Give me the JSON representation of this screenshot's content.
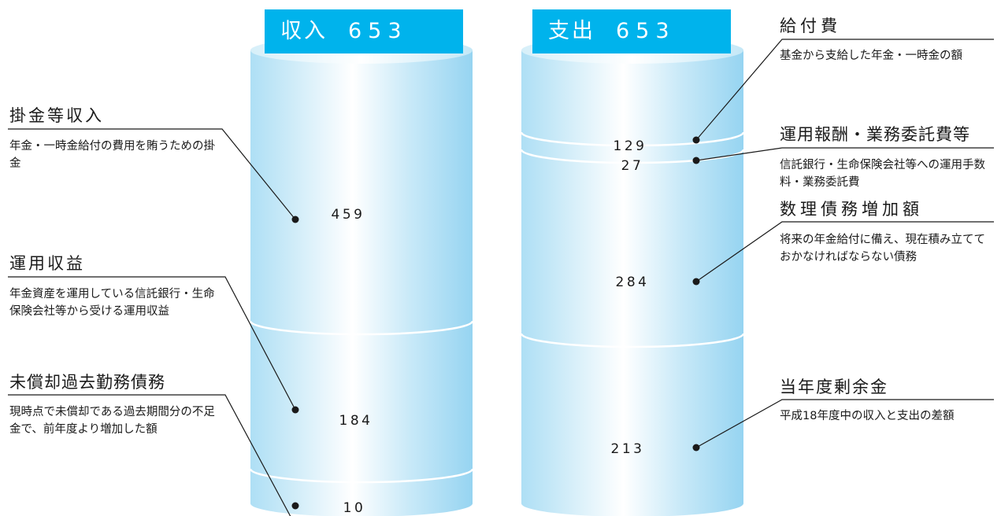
{
  "colors": {
    "accent": "#00b3ec",
    "cylinder_edge": "#8fd2f0",
    "cylinder_light": "#ffffff",
    "line": "#1a1a1a"
  },
  "income": {
    "title": "収入",
    "total": "653",
    "segments": [
      {
        "value": "459",
        "name": "掛金等収入",
        "description": "年金・一時金給付の費用を賄うための掛金"
      },
      {
        "value": "184",
        "name": "運用収益",
        "description": "年金資産を運用している信託銀行・生命保険会社等から受ける運用収益"
      },
      {
        "value": "10",
        "name": "未償却過去勤務債務",
        "description": "現時点で未償却である過去期間分の不足金で、前年度より増加した額"
      }
    ]
  },
  "expenses": {
    "title": "支出",
    "total": "653",
    "segments": [
      {
        "value": "129",
        "name": "給付費",
        "description": "基金から支給した年金・一時金の額"
      },
      {
        "value": "27",
        "name": "運用報酬・業務委託費等",
        "description": "信託銀行・生命保険会社等への運用手数料・業務委託費"
      },
      {
        "value": "284",
        "name": "数理債務増加額",
        "description": "将来の年金給付に備え、現在積み立てておかなければならない債務"
      },
      {
        "value": "213",
        "name": "当年度剰余金",
        "description": "平成18年度中の収入と支出の差額"
      }
    ]
  }
}
